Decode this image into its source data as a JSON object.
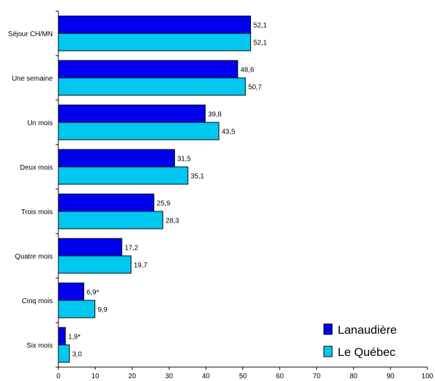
{
  "chart_data": {
    "type": "bar",
    "orientation": "horizontal",
    "title": "",
    "xlabel": "",
    "ylabel": "",
    "categories": [
      "Séjour CH/MN",
      "Une semaine",
      "Un mois",
      "Deux mois",
      "Trois mois",
      "Quatre mois",
      "Cinq mois",
      "Six mois"
    ],
    "series": [
      {
        "name": "Lanaudière",
        "color": "#0000ee",
        "values": [
          52.1,
          48.6,
          39.8,
          31.5,
          25.9,
          17.2,
          6.9,
          1.9
        ],
        "labels": [
          "52,1",
          "48,6",
          "39,8",
          "31,5",
          "25,9",
          "17,2",
          "6,9*",
          "1,9*"
        ]
      },
      {
        "name": "Le Québec",
        "color": "#00c8f0",
        "values": [
          52.1,
          50.7,
          43.5,
          35.1,
          28.3,
          19.7,
          9.9,
          3.0
        ],
        "labels": [
          "52,1",
          "50,7",
          "43,5",
          "35,1",
          "28,3",
          "19,7",
          "9,9",
          "3,0"
        ]
      }
    ],
    "xlim": [
      0,
      100
    ],
    "xticks": [
      0,
      10,
      20,
      30,
      40,
      50,
      60,
      70,
      80,
      90,
      100
    ],
    "grid": false,
    "legend": "bottom-right"
  }
}
